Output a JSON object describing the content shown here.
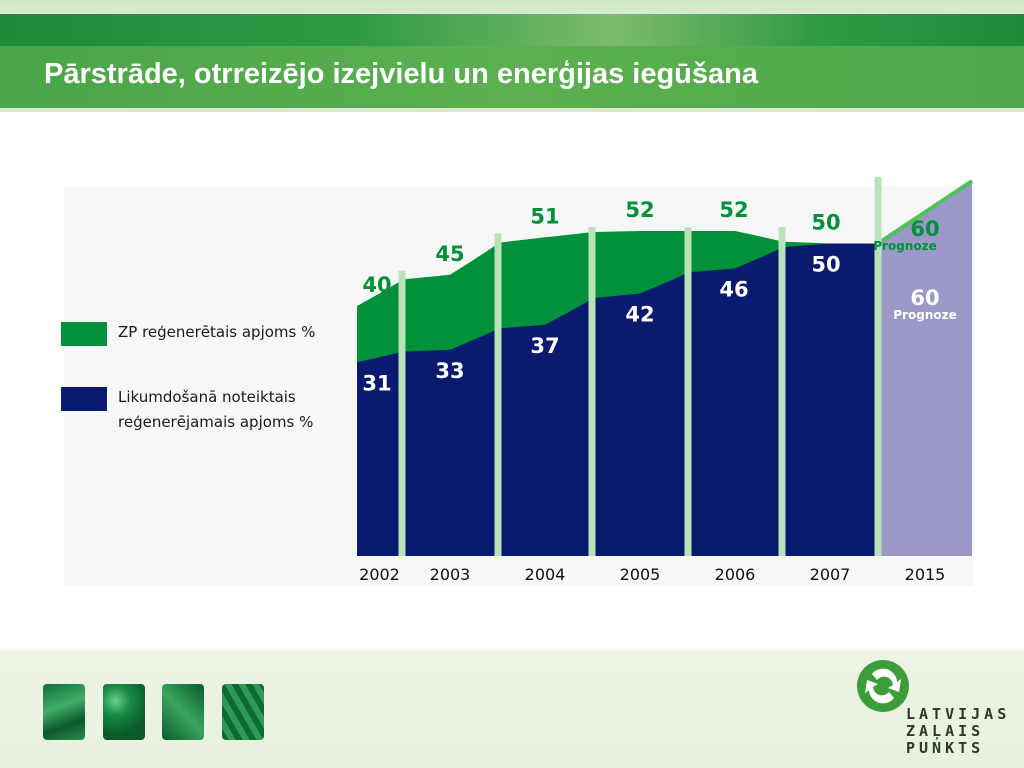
{
  "slide": {
    "title": "Pārstrāde, otrreizējo izejvielu un enerģijas iegūšana"
  },
  "legend": [
    {
      "label": "ZP reģenerētais apjoms %",
      "color": "#00913a"
    },
    {
      "label_lines": [
        "Likumdošanā noteiktais",
        "reģenerējamais apjoms %"
      ],
      "color": "#0a1a6e"
    }
  ],
  "chart_data": {
    "type": "area",
    "categories": [
      "2002",
      "2003",
      "2004",
      "2005",
      "2006",
      "2007",
      "2015"
    ],
    "series": [
      {
        "name": "ZP reģenerētais apjoms %",
        "values": [
          40,
          45,
          51,
          52,
          52,
          50,
          60
        ],
        "color": "#00913a"
      },
      {
        "name": "Likumdošanā noteiktais reģenerējamais apjoms %",
        "values": [
          31,
          33,
          37,
          42,
          46,
          50,
          60
        ],
        "color": "#0a1a6e"
      }
    ],
    "forecast": {
      "category": "2015",
      "label": "Prognoze",
      "color": "#9b98c8"
    },
    "ylim": [
      0,
      70
    ],
    "title": "",
    "xlabel": "",
    "ylabel": ""
  },
  "footer": {
    "logo_lines": [
      "LATVIJAS",
      "ZAĻAIS",
      "PUNKTS"
    ],
    "logo_color": "#3c9e3a"
  }
}
